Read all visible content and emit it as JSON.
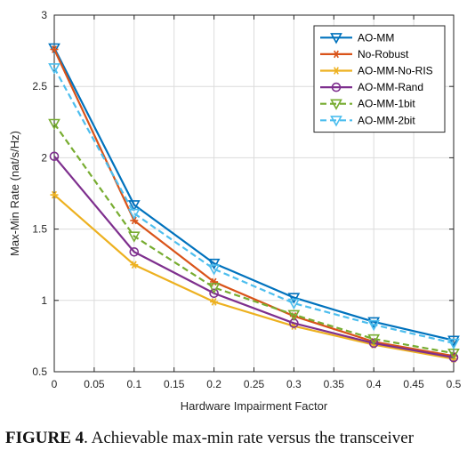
{
  "caption": {
    "label": "FIGURE 4",
    "text": ". Achievable max-min rate versus the transceiver"
  },
  "chart_data": {
    "type": "line",
    "xlabel": "Hardware Impairment Factor",
    "ylabel": "Max-Min Rate (nat/s/Hz)",
    "xlim": [
      0,
      0.5
    ],
    "ylim": [
      0.5,
      3
    ],
    "x_ticks": [
      "0",
      "0.05",
      "0.1",
      "0.15",
      "0.2",
      "0.25",
      "0.3",
      "0.35",
      "0.4",
      "0.45",
      "0.5"
    ],
    "y_ticks": [
      "0.5",
      "1",
      "1.5",
      "2",
      "2.5",
      "3"
    ],
    "grid": true,
    "legend_position": "top-right",
    "x": [
      0,
      0.1,
      0.2,
      0.3,
      0.4,
      0.5
    ],
    "series": [
      {
        "name": "AO-MM",
        "values": [
          2.77,
          1.67,
          1.26,
          1.02,
          0.85,
          0.72
        ],
        "color": "#0072BD",
        "marker": "triangle-down",
        "dash": "solid"
      },
      {
        "name": "No-Robust",
        "values": [
          2.76,
          1.56,
          1.13,
          0.89,
          0.71,
          0.61
        ],
        "color": "#D95319",
        "marker": "asterisk",
        "dash": "solid"
      },
      {
        "name": "AO-MM-No-RIS",
        "values": [
          1.74,
          1.25,
          0.99,
          0.82,
          0.69,
          0.59
        ],
        "color": "#EDB120",
        "marker": "asterisk",
        "dash": "solid"
      },
      {
        "name": "AO-MM-Rand",
        "values": [
          2.01,
          1.34,
          1.05,
          0.84,
          0.7,
          0.6
        ],
        "color": "#7E2F8E",
        "marker": "circle",
        "dash": "solid"
      },
      {
        "name": "AO-MM-1bit",
        "values": [
          2.24,
          1.45,
          1.09,
          0.9,
          0.73,
          0.63
        ],
        "color": "#77AC30",
        "marker": "triangle-down",
        "dash": "dashed"
      },
      {
        "name": "AO-MM-2bit",
        "values": [
          2.63,
          1.61,
          1.22,
          0.98,
          0.83,
          0.7
        ],
        "color": "#4DBEEE",
        "marker": "triangle-down",
        "dash": "dashed"
      }
    ]
  }
}
